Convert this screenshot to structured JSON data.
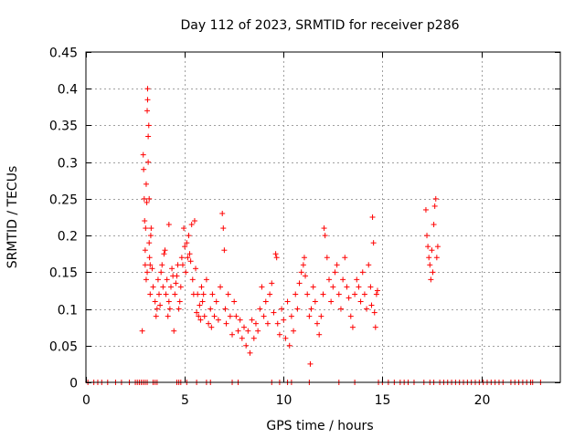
{
  "chart_data": {
    "type": "scatter",
    "title": "Day 112 of 2023, SRMTID for receiver p286",
    "xlabel": "GPS time / hours",
    "ylabel": "SRMTID / TECUs",
    "xlim": [
      0,
      24
    ],
    "ylim": [
      0,
      0.45
    ],
    "xticks": [
      0,
      5,
      10,
      15,
      20
    ],
    "xtick_labels": [
      "0",
      "5",
      "10",
      "15",
      "20"
    ],
    "yticks": [
      0,
      0.05,
      0.1,
      0.15,
      0.2,
      0.25,
      0.3,
      0.35,
      0.4,
      0.45
    ],
    "ytick_labels": [
      "0",
      "0.05",
      "0.1",
      "0.15",
      "0.2",
      "0.25",
      "0.3",
      "0.35",
      "0.4",
      "0.45"
    ],
    "grid": true,
    "marker": "+",
    "series_color": "#ff0000",
    "series": [
      {
        "name": "SRMTID",
        "points": [
          [
            0.1,
            0
          ],
          [
            0.4,
            0
          ],
          [
            0.6,
            0
          ],
          [
            0.8,
            0
          ],
          [
            1.1,
            0
          ],
          [
            1.5,
            0
          ],
          [
            1.8,
            0
          ],
          [
            2.2,
            0
          ],
          [
            2.5,
            0
          ],
          [
            2.6,
            0
          ],
          [
            2.7,
            0
          ],
          [
            2.8,
            0
          ],
          [
            2.9,
            0
          ],
          [
            3.0,
            0
          ],
          [
            3.1,
            0
          ],
          [
            3.4,
            0
          ],
          [
            3.5,
            0
          ],
          [
            3.6,
            0
          ],
          [
            4.6,
            0
          ],
          [
            4.7,
            0
          ],
          [
            4.8,
            0
          ],
          [
            5.1,
            0
          ],
          [
            5.6,
            0
          ],
          [
            6.1,
            0
          ],
          [
            6.3,
            0
          ],
          [
            7.4,
            0
          ],
          [
            7.7,
            0
          ],
          [
            9.4,
            0
          ],
          [
            9.8,
            0
          ],
          [
            10.2,
            0
          ],
          [
            10.4,
            0
          ],
          [
            11.3,
            0
          ],
          [
            12.8,
            0
          ],
          [
            13.6,
            0
          ],
          [
            14.8,
            0
          ],
          [
            15.0,
            0
          ],
          [
            15.3,
            0
          ],
          [
            15.6,
            0
          ],
          [
            15.9,
            0
          ],
          [
            16.1,
            0
          ],
          [
            16.3,
            0
          ],
          [
            16.6,
            0
          ],
          [
            17.1,
            0
          ],
          [
            17.4,
            0
          ],
          [
            17.6,
            0
          ],
          [
            17.9,
            0
          ],
          [
            18.1,
            0
          ],
          [
            18.3,
            0
          ],
          [
            18.5,
            0
          ],
          [
            18.7,
            0
          ],
          [
            18.9,
            0
          ],
          [
            19.1,
            0
          ],
          [
            19.3,
            0
          ],
          [
            19.5,
            0
          ],
          [
            19.7,
            0
          ],
          [
            19.9,
            0
          ],
          [
            20.1,
            0
          ],
          [
            20.3,
            0
          ],
          [
            20.5,
            0
          ],
          [
            20.7,
            0
          ],
          [
            20.9,
            0
          ],
          [
            21.1,
            0
          ],
          [
            21.5,
            0
          ],
          [
            21.7,
            0
          ],
          [
            21.9,
            0
          ],
          [
            22.1,
            0
          ],
          [
            22.3,
            0
          ],
          [
            22.5,
            0
          ],
          [
            22.6,
            0
          ],
          [
            23.0,
            0
          ],
          [
            2.85,
            0.07
          ],
          [
            2.9,
            0.31
          ],
          [
            2.92,
            0.29
          ],
          [
            2.95,
            0.25
          ],
          [
            2.97,
            0.22
          ],
          [
            3.0,
            0.18
          ],
          [
            3.0,
            0.16
          ],
          [
            3.02,
            0.21
          ],
          [
            3.05,
            0.27
          ],
          [
            3.05,
            0.14
          ],
          [
            3.08,
            0.245
          ],
          [
            3.1,
            0.15
          ],
          [
            3.1,
            0.37
          ],
          [
            3.12,
            0.4
          ],
          [
            3.12,
            0.385
          ],
          [
            3.15,
            0.335
          ],
          [
            3.15,
            0.3
          ],
          [
            3.18,
            0.35
          ],
          [
            3.2,
            0.25
          ],
          [
            3.2,
            0.19
          ],
          [
            3.22,
            0.17
          ],
          [
            3.25,
            0.12
          ],
          [
            3.25,
            0.16
          ],
          [
            3.28,
            0.2
          ],
          [
            3.3,
            0.21
          ],
          [
            3.35,
            0.155
          ],
          [
            3.4,
            0.13
          ],
          [
            3.5,
            0.11
          ],
          [
            3.55,
            0.09
          ],
          [
            3.6,
            0.1
          ],
          [
            3.65,
            0.14
          ],
          [
            3.7,
            0.12
          ],
          [
            3.75,
            0.105
          ],
          [
            3.8,
            0.15
          ],
          [
            3.85,
            0.16
          ],
          [
            3.9,
            0.13
          ],
          [
            3.95,
            0.175
          ],
          [
            4.0,
            0.18
          ],
          [
            4.05,
            0.12
          ],
          [
            4.1,
            0.14
          ],
          [
            4.15,
            0.09
          ],
          [
            4.2,
            0.11
          ],
          [
            4.2,
            0.215
          ],
          [
            4.25,
            0.1
          ],
          [
            4.3,
            0.13
          ],
          [
            4.35,
            0.155
          ],
          [
            4.4,
            0.145
          ],
          [
            4.45,
            0.07
          ],
          [
            4.5,
            0.12
          ],
          [
            4.55,
            0.135
          ],
          [
            4.6,
            0.145
          ],
          [
            4.65,
            0.16
          ],
          [
            4.7,
            0.1
          ],
          [
            4.75,
            0.11
          ],
          [
            4.8,
            0.13
          ],
          [
            4.85,
            0.17
          ],
          [
            4.9,
            0.16
          ],
          [
            4.95,
            0.21
          ],
          [
            5.0,
            0.185
          ],
          [
            5.05,
            0.15
          ],
          [
            5.1,
            0.19
          ],
          [
            5.15,
            0.17
          ],
          [
            5.2,
            0.2
          ],
          [
            5.25,
            0.175
          ],
          [
            5.3,
            0.165
          ],
          [
            5.35,
            0.215
          ],
          [
            5.4,
            0.14
          ],
          [
            5.45,
            0.12
          ],
          [
            5.5,
            0.22
          ],
          [
            5.55,
            0.155
          ],
          [
            5.6,
            0.095
          ],
          [
            5.65,
            0.12
          ],
          [
            5.7,
            0.09
          ],
          [
            5.75,
            0.105
          ],
          [
            5.8,
            0.085
          ],
          [
            5.85,
            0.13
          ],
          [
            5.9,
            0.11
          ],
          [
            5.95,
            0.12
          ],
          [
            6.0,
            0.09
          ],
          [
            6.1,
            0.14
          ],
          [
            6.2,
            0.08
          ],
          [
            6.3,
            0.1
          ],
          [
            6.35,
            0.075
          ],
          [
            6.4,
            0.12
          ],
          [
            6.5,
            0.09
          ],
          [
            6.6,
            0.11
          ],
          [
            6.7,
            0.085
          ],
          [
            6.8,
            0.13
          ],
          [
            6.9,
            0.23
          ],
          [
            6.95,
            0.21
          ],
          [
            7.0,
            0.18
          ],
          [
            7.05,
            0.1
          ],
          [
            7.1,
            0.08
          ],
          [
            7.2,
            0.12
          ],
          [
            7.3,
            0.09
          ],
          [
            7.4,
            0.065
          ],
          [
            7.5,
            0.11
          ],
          [
            7.6,
            0.09
          ],
          [
            7.7,
            0.07
          ],
          [
            7.8,
            0.085
          ],
          [
            7.9,
            0.06
          ],
          [
            8.0,
            0.075
          ],
          [
            8.1,
            0.05
          ],
          [
            8.2,
            0.07
          ],
          [
            8.3,
            0.04
          ],
          [
            8.4,
            0.085
          ],
          [
            8.5,
            0.06
          ],
          [
            8.6,
            0.08
          ],
          [
            8.7,
            0.07
          ],
          [
            8.8,
            0.1
          ],
          [
            8.9,
            0.13
          ],
          [
            9.0,
            0.09
          ],
          [
            9.1,
            0.11
          ],
          [
            9.2,
            0.08
          ],
          [
            9.3,
            0.12
          ],
          [
            9.4,
            0.135
          ],
          [
            9.5,
            0.095
          ],
          [
            9.6,
            0.175
          ],
          [
            9.65,
            0.17
          ],
          [
            9.7,
            0.08
          ],
          [
            9.8,
            0.065
          ],
          [
            9.9,
            0.1
          ],
          [
            10.0,
            0.085
          ],
          [
            10.1,
            0.06
          ],
          [
            10.2,
            0.11
          ],
          [
            10.3,
            0.05
          ],
          [
            10.4,
            0.09
          ],
          [
            10.5,
            0.07
          ],
          [
            10.6,
            0.12
          ],
          [
            10.7,
            0.1
          ],
          [
            10.8,
            0.135
          ],
          [
            10.9,
            0.15
          ],
          [
            11.0,
            0.16
          ],
          [
            11.05,
            0.17
          ],
          [
            11.1,
            0.145
          ],
          [
            11.2,
            0.12
          ],
          [
            11.3,
            0.09
          ],
          [
            11.35,
            0.025
          ],
          [
            11.4,
            0.1
          ],
          [
            11.5,
            0.13
          ],
          [
            11.6,
            0.11
          ],
          [
            11.7,
            0.08
          ],
          [
            11.8,
            0.065
          ],
          [
            11.9,
            0.09
          ],
          [
            12.0,
            0.12
          ],
          [
            12.05,
            0.21
          ],
          [
            12.1,
            0.2
          ],
          [
            12.2,
            0.17
          ],
          [
            12.3,
            0.14
          ],
          [
            12.4,
            0.11
          ],
          [
            12.5,
            0.13
          ],
          [
            12.6,
            0.15
          ],
          [
            12.7,
            0.16
          ],
          [
            12.8,
            0.12
          ],
          [
            12.9,
            0.1
          ],
          [
            13.0,
            0.14
          ],
          [
            13.1,
            0.17
          ],
          [
            13.2,
            0.13
          ],
          [
            13.3,
            0.115
          ],
          [
            13.4,
            0.09
          ],
          [
            13.5,
            0.075
          ],
          [
            13.6,
            0.12
          ],
          [
            13.7,
            0.14
          ],
          [
            13.8,
            0.13
          ],
          [
            13.9,
            0.11
          ],
          [
            14.0,
            0.15
          ],
          [
            14.1,
            0.12
          ],
          [
            14.2,
            0.1
          ],
          [
            14.3,
            0.16
          ],
          [
            14.4,
            0.13
          ],
          [
            14.45,
            0.105
          ],
          [
            14.5,
            0.225
          ],
          [
            14.55,
            0.19
          ],
          [
            14.6,
            0.095
          ],
          [
            14.65,
            0.075
          ],
          [
            14.7,
            0.12
          ],
          [
            14.75,
            0.125
          ],
          [
            17.2,
            0.235
          ],
          [
            17.25,
            0.2
          ],
          [
            17.3,
            0.185
          ],
          [
            17.35,
            0.17
          ],
          [
            17.4,
            0.16
          ],
          [
            17.45,
            0.14
          ],
          [
            17.5,
            0.18
          ],
          [
            17.55,
            0.15
          ],
          [
            17.6,
            0.215
          ],
          [
            17.65,
            0.24
          ],
          [
            17.7,
            0.25
          ],
          [
            17.75,
            0.17
          ],
          [
            17.8,
            0.185
          ]
        ]
      }
    ]
  }
}
